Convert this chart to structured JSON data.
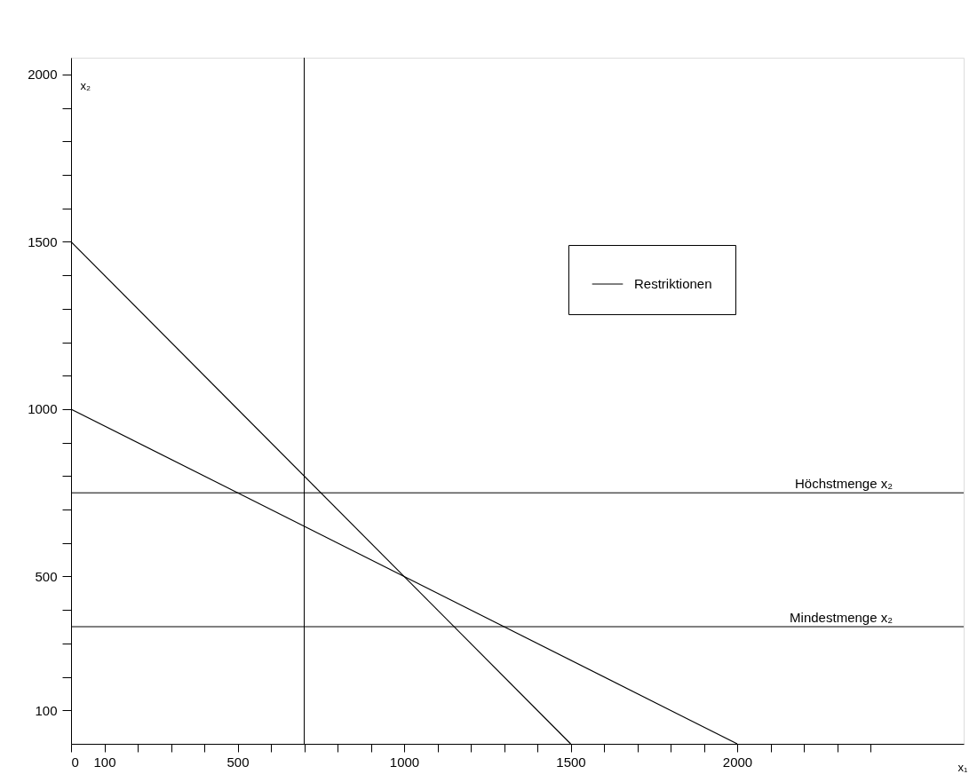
{
  "chart_data": {
    "type": "line",
    "xlabel": "x₁",
    "ylabel": "x₂",
    "series": [
      {
        "name": "Restriktionen",
        "color": "#000000",
        "x": [
          0,
          1500
        ],
        "values": [
          1500,
          0
        ]
      },
      {
        "color": "#000000",
        "x": [
          0,
          2000
        ],
        "values": [
          1000,
          0
        ]
      }
    ],
    "ref_lines": [
      {
        "axis": "x",
        "value": 700,
        "label": null,
        "color": "#000000"
      },
      {
        "axis": "y",
        "value": 750,
        "label": "Höchstmenge x₂",
        "color": "#000000"
      },
      {
        "axis": "y",
        "value": 350,
        "label": "Mindestmenge x₂",
        "color": "#000000"
      }
    ],
    "xlim": [
      0,
      2680
    ],
    "ylim": [
      0,
      2050
    ],
    "xticks": [
      0,
      100,
      {
        "value": 200,
        "label": null
      },
      {
        "value": 300,
        "label": null
      },
      {
        "value": 400,
        "label": null
      },
      500,
      {
        "value": 600,
        "label": null
      },
      {
        "value": 700,
        "label": null
      },
      {
        "value": 800,
        "label": null
      },
      {
        "value": 900,
        "label": null
      },
      1000,
      {
        "value": 1100,
        "label": null
      },
      {
        "value": 1200,
        "label": null
      },
      {
        "value": 1300,
        "label": null
      },
      {
        "value": 1400,
        "label": null
      },
      1500,
      {
        "value": 1600,
        "label": null
      },
      {
        "value": 1700,
        "label": null
      },
      {
        "value": 1800,
        "label": null
      },
      {
        "value": 1900,
        "label": null
      },
      2000,
      {
        "value": 2100,
        "label": null
      },
      {
        "value": 2200,
        "label": null
      },
      {
        "value": 2300,
        "label": null
      },
      {
        "value": 2400,
        "label": null
      }
    ],
    "yticks": [
      100,
      {
        "value": 200,
        "label": null
      },
      {
        "value": 300,
        "label": null
      },
      {
        "value": 400,
        "label": null
      },
      500,
      {
        "value": 600,
        "label": null
      },
      {
        "value": 700,
        "label": null
      },
      {
        "value": 800,
        "label": null
      },
      {
        "value": 900,
        "label": null
      },
      1000,
      {
        "value": 1100,
        "label": null
      },
      {
        "value": 1200,
        "label": null
      },
      {
        "value": 1300,
        "label": null
      },
      {
        "value": 1400,
        "label": null
      },
      1500,
      {
        "value": 1600,
        "label": null
      },
      {
        "value": 1700,
        "label": null
      },
      {
        "value": 1800,
        "label": null
      },
      {
        "value": 1900,
        "label": null
      },
      2000
    ],
    "grid": false,
    "legend": "top right",
    "marker": "none",
    "line_style": "solid"
  }
}
